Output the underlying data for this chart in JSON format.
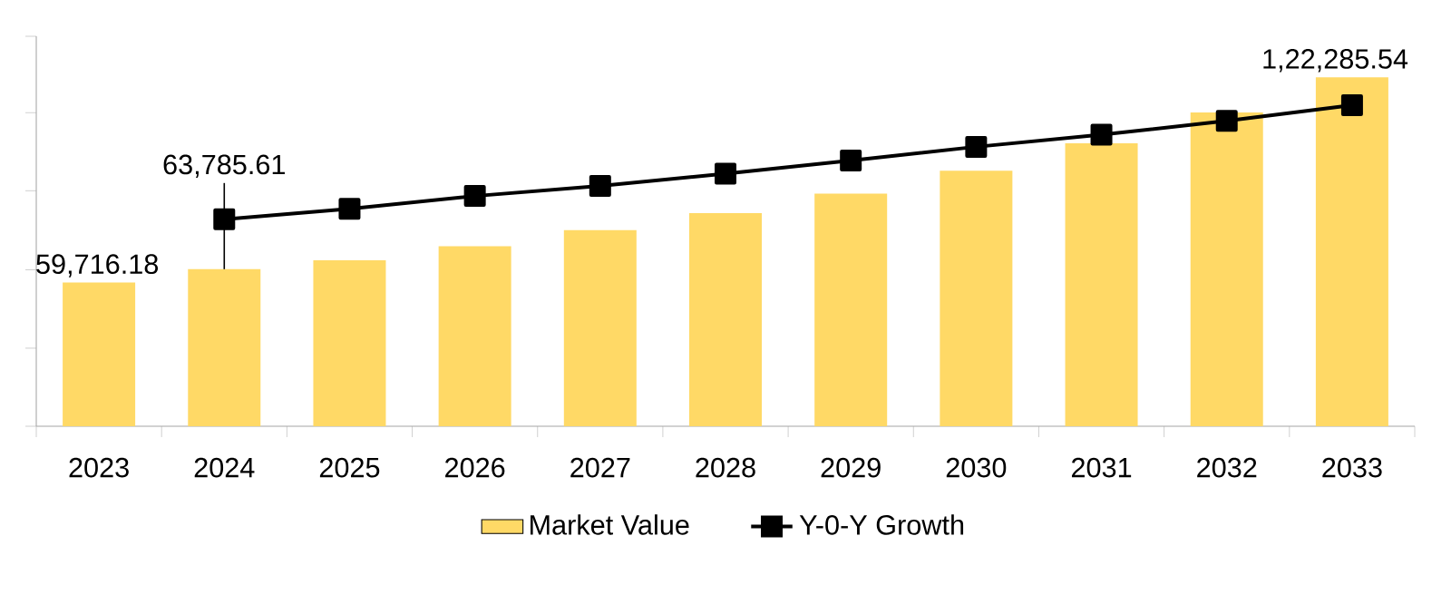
{
  "chart_data": {
    "type": "bar",
    "categories": [
      "2023",
      "2024",
      "2025",
      "2026",
      "2027",
      "2028",
      "2029",
      "2030",
      "2031",
      "2032",
      "2033"
    ],
    "series": [
      {
        "name": "Market Value",
        "color": "#ffd966",
        "values": [
          59716.18,
          63785.61,
          66500,
          70800,
          75700,
          80900,
          86800,
          93800,
          102200,
          111600,
          122285.54
        ],
        "value_labels": [
          "59,716.18",
          "63,785.61",
          null,
          null,
          null,
          null,
          null,
          null,
          null,
          null,
          "1,22,285.54"
        ]
      },
      {
        "name": "Y-0-Y Growth",
        "type": "line",
        "color": "#000000",
        "values": [
          null,
          79000,
          82200,
          86100,
          89200,
          92900,
          96900,
          101100,
          104800,
          109000,
          113800
        ]
      }
    ],
    "marker": "square",
    "ylim": [
      15900,
      134800
    ],
    "yticks": [
      {
        "value": 15900,
        "label": null
      },
      {
        "value": 39700,
        "label": null
      },
      {
        "value": 63600,
        "label": null
      },
      {
        "value": 87700,
        "label": null
      },
      {
        "value": 111500,
        "label": null
      },
      {
        "value": 134800,
        "label": null
      }
    ],
    "tick_labels": "x",
    "legend": "bottom"
  }
}
